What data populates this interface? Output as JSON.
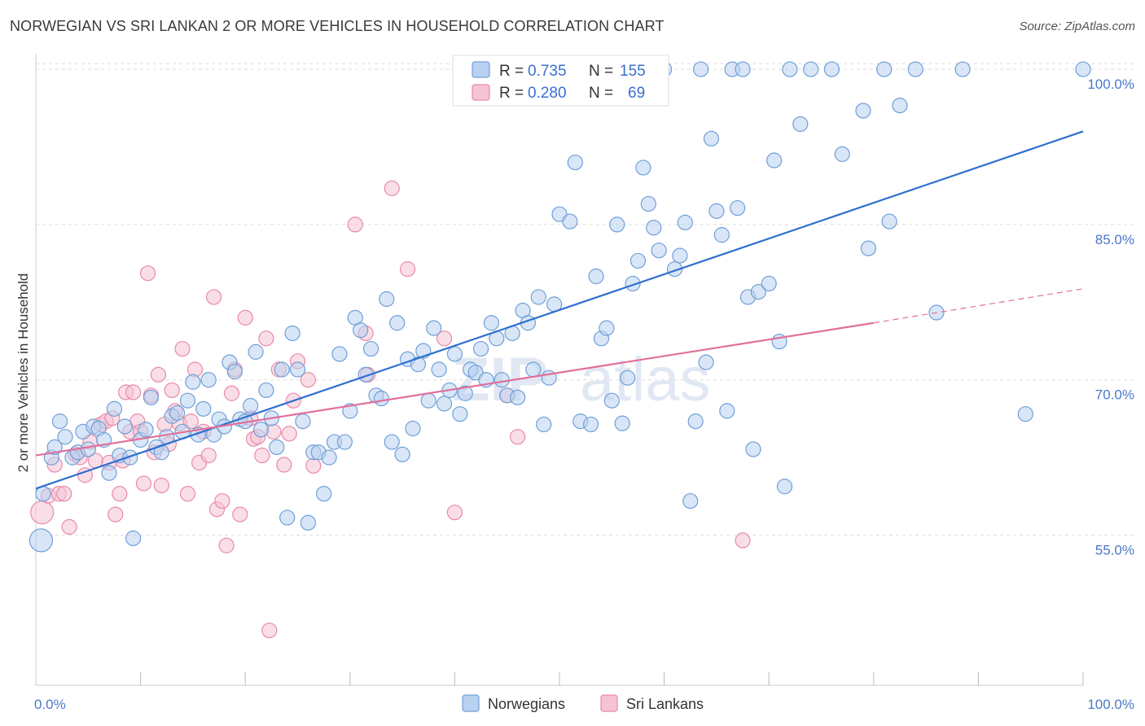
{
  "title": "NORWEGIAN VS SRI LANKAN 2 OR MORE VEHICLES IN HOUSEHOLD CORRELATION CHART",
  "source": "Source: ZipAtlas.com",
  "watermark": {
    "zip": "ZIP",
    "atlas": "atlas"
  },
  "colors": {
    "norwegians_fill": "#b9d1f0",
    "norwegians_stroke": "#6f9fd8",
    "norwegians_line": "#2f6fcf",
    "srilankans_fill": "#f6c3d3",
    "srilankans_stroke": "#e88aa8",
    "srilankans_line": "#e0709a",
    "grid": "#dddddd",
    "axis_text": "#4a78c8"
  },
  "legend": {
    "rows": [
      {
        "r_label": "R =",
        "r_value": "0.735",
        "n_label": "N =",
        "n_value": "155"
      },
      {
        "r_label": "R =",
        "r_value": "0.280",
        "n_label": "N =",
        "n_value": "69"
      }
    ]
  },
  "bottom_legend": [
    "Norwegians",
    "Sri Lankans"
  ],
  "chart_data": {
    "type": "scatter",
    "xlabel": "",
    "ylabel": "2 or more Vehicles in Household",
    "xlim": [
      0,
      100
    ],
    "ylim": [
      40.5,
      101.5
    ],
    "x_tick_labels": [
      {
        "value": 0,
        "label": "0.0%"
      },
      {
        "value": 100,
        "label": "100.0%"
      }
    ],
    "y_tick_labels": [
      {
        "value": 100,
        "label": "100.0%"
      },
      {
        "value": 85,
        "label": "85.0%"
      },
      {
        "value": 70,
        "label": "70.0%"
      },
      {
        "value": 55,
        "label": "55.0%"
      }
    ],
    "x_minor_ticks": [
      10,
      20,
      30,
      40,
      50,
      60,
      70,
      80,
      90
    ],
    "series": [
      {
        "name": "Norwegians",
        "trend": {
          "x0": 0,
          "y0": 59.5,
          "x1": 100,
          "y1": 94.0
        },
        "points": [
          [
            0.5,
            54.5
          ],
          [
            0.7,
            59.0
          ],
          [
            1.5,
            62.5
          ],
          [
            1.8,
            63.5
          ],
          [
            2.3,
            66.0
          ],
          [
            2.8,
            64.5
          ],
          [
            3.5,
            62.5
          ],
          [
            4.0,
            63.0
          ],
          [
            4.5,
            65.0
          ],
          [
            5.0,
            63.3
          ],
          [
            5.5,
            65.5
          ],
          [
            6.0,
            65.3
          ],
          [
            6.5,
            64.2
          ],
          [
            7.0,
            61.0
          ],
          [
            7.5,
            67.2
          ],
          [
            8.0,
            62.7
          ],
          [
            8.5,
            65.5
          ],
          [
            9.0,
            62.5
          ],
          [
            9.3,
            54.7
          ],
          [
            10.0,
            64.2
          ],
          [
            10.5,
            65.2
          ],
          [
            11.0,
            68.3
          ],
          [
            11.5,
            63.5
          ],
          [
            12.0,
            63.0
          ],
          [
            12.5,
            64.5
          ],
          [
            13.0,
            66.5
          ],
          [
            13.5,
            66.8
          ],
          [
            14.0,
            65.0
          ],
          [
            14.5,
            68.0
          ],
          [
            15.0,
            69.8
          ],
          [
            15.5,
            64.7
          ],
          [
            16.0,
            67.2
          ],
          [
            16.5,
            70.0
          ],
          [
            17.0,
            64.7
          ],
          [
            17.5,
            66.2
          ],
          [
            18.0,
            65.5
          ],
          [
            18.5,
            71.7
          ],
          [
            19.0,
            70.8
          ],
          [
            19.5,
            66.2
          ],
          [
            20.0,
            66.0
          ],
          [
            20.5,
            67.5
          ],
          [
            21.0,
            72.7
          ],
          [
            21.5,
            65.2
          ],
          [
            22.0,
            69.0
          ],
          [
            22.5,
            66.3
          ],
          [
            23.0,
            63.5
          ],
          [
            23.5,
            71.0
          ],
          [
            24.0,
            56.7
          ],
          [
            24.5,
            74.5
          ],
          [
            25.0,
            71.0
          ],
          [
            25.5,
            66.0
          ],
          [
            26.0,
            56.2
          ],
          [
            26.5,
            63.0
          ],
          [
            27.0,
            63.0
          ],
          [
            27.5,
            59.0
          ],
          [
            28.0,
            62.5
          ],
          [
            28.5,
            64.0
          ],
          [
            29.0,
            72.5
          ],
          [
            29.5,
            64.0
          ],
          [
            30.0,
            67.0
          ],
          [
            30.5,
            76.0
          ],
          [
            31.0,
            74.8
          ],
          [
            31.5,
            70.5
          ],
          [
            32.0,
            73.0
          ],
          [
            32.5,
            68.5
          ],
          [
            33.0,
            68.2
          ],
          [
            33.5,
            77.8
          ],
          [
            34.0,
            64.0
          ],
          [
            34.5,
            75.5
          ],
          [
            35.0,
            62.8
          ],
          [
            35.5,
            72.0
          ],
          [
            36.0,
            65.3
          ],
          [
            36.5,
            71.5
          ],
          [
            37.0,
            72.8
          ],
          [
            37.5,
            68.0
          ],
          [
            38.0,
            75.0
          ],
          [
            38.5,
            71.0
          ],
          [
            39.0,
            67.7
          ],
          [
            39.5,
            69.0
          ],
          [
            40.0,
            72.5
          ],
          [
            40.5,
            66.7
          ],
          [
            41.0,
            68.7
          ],
          [
            41.5,
            71.0
          ],
          [
            42.0,
            70.7
          ],
          [
            42.5,
            73.0
          ],
          [
            43.0,
            70.0
          ],
          [
            43.5,
            75.5
          ],
          [
            44.0,
            74.0
          ],
          [
            44.5,
            70.0
          ],
          [
            45.0,
            68.5
          ],
          [
            45.5,
            74.5
          ],
          [
            46.0,
            68.3
          ],
          [
            46.5,
            76.7
          ],
          [
            47.0,
            75.5
          ],
          [
            47.5,
            71.0
          ],
          [
            48.0,
            78.0
          ],
          [
            48.5,
            65.7
          ],
          [
            49.0,
            70.2
          ],
          [
            49.5,
            77.3
          ],
          [
            50.0,
            86.0
          ],
          [
            51.0,
            85.3
          ],
          [
            51.5,
            91.0
          ],
          [
            52.0,
            66.0
          ],
          [
            53.0,
            65.7
          ],
          [
            53.5,
            80.0
          ],
          [
            54.0,
            74.0
          ],
          [
            54.5,
            75.0
          ],
          [
            55.0,
            68.0
          ],
          [
            55.5,
            85.0
          ],
          [
            56.0,
            65.8
          ],
          [
            56.5,
            70.2
          ],
          [
            57.0,
            79.3
          ],
          [
            57.5,
            81.5
          ],
          [
            58.0,
            90.5
          ],
          [
            58.5,
            87.0
          ],
          [
            59.0,
            84.7
          ],
          [
            59.5,
            82.5
          ],
          [
            60.0,
            100.0
          ],
          [
            61.0,
            80.7
          ],
          [
            61.5,
            82.0
          ],
          [
            62.0,
            85.2
          ],
          [
            62.5,
            58.3
          ],
          [
            63.0,
            66.0
          ],
          [
            63.5,
            100.0
          ],
          [
            64.0,
            71.7
          ],
          [
            64.5,
            93.3
          ],
          [
            65.0,
            86.3
          ],
          [
            65.5,
            84.0
          ],
          [
            66.0,
            67.0
          ],
          [
            66.5,
            100.0
          ],
          [
            67.0,
            86.6
          ],
          [
            67.5,
            100.0
          ],
          [
            68.0,
            78.0
          ],
          [
            68.5,
            63.3
          ],
          [
            69.0,
            78.5
          ],
          [
            70.0,
            79.3
          ],
          [
            70.5,
            91.2
          ],
          [
            71.0,
            73.7
          ],
          [
            71.5,
            59.7
          ],
          [
            72.0,
            100.0
          ],
          [
            73.0,
            94.7
          ],
          [
            74.0,
            100.0
          ],
          [
            76.0,
            100.0
          ],
          [
            77.0,
            91.8
          ],
          [
            79.0,
            96.0
          ],
          [
            79.5,
            82.7
          ],
          [
            81.0,
            100.0
          ],
          [
            81.5,
            85.3
          ],
          [
            82.5,
            96.5
          ],
          [
            84.0,
            100.0
          ],
          [
            86.0,
            76.5
          ],
          [
            88.5,
            100.0
          ],
          [
            94.5,
            66.7
          ],
          [
            100.0,
            100.0
          ]
        ]
      },
      {
        "name": "Sri Lankans",
        "trend": {
          "x0": 0,
          "y0": 62.7,
          "x1": 80,
          "y1": 75.5,
          "x2": 100,
          "y2": 78.8
        },
        "points": [
          [
            0.6,
            57.2
          ],
          [
            1.2,
            58.8
          ],
          [
            1.8,
            61.8
          ],
          [
            2.2,
            59.0
          ],
          [
            2.7,
            59.0
          ],
          [
            3.2,
            55.8
          ],
          [
            3.8,
            62.8
          ],
          [
            4.2,
            62.5
          ],
          [
            4.7,
            60.8
          ],
          [
            5.2,
            64.0
          ],
          [
            5.7,
            62.2
          ],
          [
            6.2,
            65.7
          ],
          [
            6.7,
            66.0
          ],
          [
            7.0,
            62.0
          ],
          [
            7.3,
            66.3
          ],
          [
            7.6,
            57.0
          ],
          [
            8.0,
            59.0
          ],
          [
            8.3,
            62.2
          ],
          [
            8.6,
            68.8
          ],
          [
            9.0,
            65.0
          ],
          [
            9.3,
            68.8
          ],
          [
            9.7,
            66.0
          ],
          [
            10.0,
            65.0
          ],
          [
            10.3,
            60.0
          ],
          [
            10.7,
            80.3
          ],
          [
            11.0,
            68.5
          ],
          [
            11.3,
            63.0
          ],
          [
            11.7,
            70.5
          ],
          [
            12.0,
            59.8
          ],
          [
            12.3,
            65.7
          ],
          [
            12.7,
            63.8
          ],
          [
            13.0,
            69.0
          ],
          [
            13.3,
            67.0
          ],
          [
            13.7,
            65.8
          ],
          [
            14.0,
            73.0
          ],
          [
            14.5,
            59.0
          ],
          [
            14.8,
            66.0
          ],
          [
            15.2,
            71.0
          ],
          [
            15.6,
            62.0
          ],
          [
            16.0,
            65.0
          ],
          [
            16.5,
            62.7
          ],
          [
            17.0,
            78.0
          ],
          [
            17.3,
            57.5
          ],
          [
            17.8,
            58.3
          ],
          [
            18.2,
            54.0
          ],
          [
            18.7,
            68.7
          ],
          [
            19.0,
            71.0
          ],
          [
            19.5,
            57.0
          ],
          [
            20.0,
            76.0
          ],
          [
            20.5,
            66.3
          ],
          [
            20.8,
            64.3
          ],
          [
            21.2,
            64.5
          ],
          [
            21.6,
            62.7
          ],
          [
            22.0,
            74.0
          ],
          [
            22.3,
            45.8
          ],
          [
            22.7,
            65.0
          ],
          [
            23.2,
            71.0
          ],
          [
            23.7,
            61.8
          ],
          [
            24.2,
            64.8
          ],
          [
            24.6,
            68.0
          ],
          [
            25.0,
            71.8
          ],
          [
            26.0,
            70.0
          ],
          [
            26.5,
            61.7
          ],
          [
            30.5,
            85.0
          ],
          [
            31.5,
            74.5
          ],
          [
            31.7,
            70.5
          ],
          [
            34.0,
            88.5
          ],
          [
            35.5,
            80.7
          ],
          [
            39.0,
            74.0
          ],
          [
            40.0,
            57.2
          ],
          [
            45.0,
            68.5
          ],
          [
            46.0,
            64.5
          ],
          [
            67.5,
            54.5
          ]
        ]
      }
    ]
  }
}
